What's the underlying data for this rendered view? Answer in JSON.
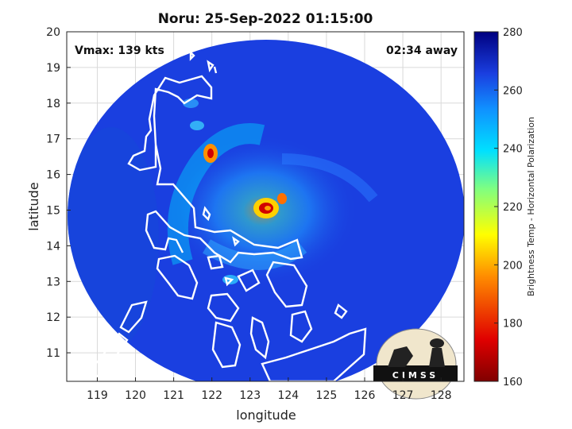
{
  "title": "Noru: 25-Sep-2022 01:15:00",
  "vmax_label": "Vmax: 139 kts",
  "time_away_label": "02:34 away",
  "xlabel": "longitude",
  "ylabel": "latitude",
  "colorbar_label": "Brightness Temp - Horizontal Polarization",
  "logo_text": "CIMSS",
  "x_ticks": [
    "119",
    "120",
    "121",
    "122",
    "123",
    "124",
    "125",
    "126",
    "127",
    "128"
  ],
  "y_ticks": [
    "11",
    "12",
    "13",
    "14",
    "15",
    "16",
    "17",
    "18",
    "19",
    "20"
  ],
  "colorbar_ticks": [
    "160",
    "180",
    "200",
    "220",
    "240",
    "260",
    "280"
  ],
  "colors": {
    "background_scan": "#1a3fe0",
    "eye": "#d10000",
    "coast": "#ffffff",
    "logo_bg": "#f0e6cc"
  },
  "map_extent": {
    "lon": [
      118.2,
      128.6
    ],
    "lat": [
      10.2,
      20.0
    ]
  },
  "colorbar_range": [
    160,
    280
  ]
}
